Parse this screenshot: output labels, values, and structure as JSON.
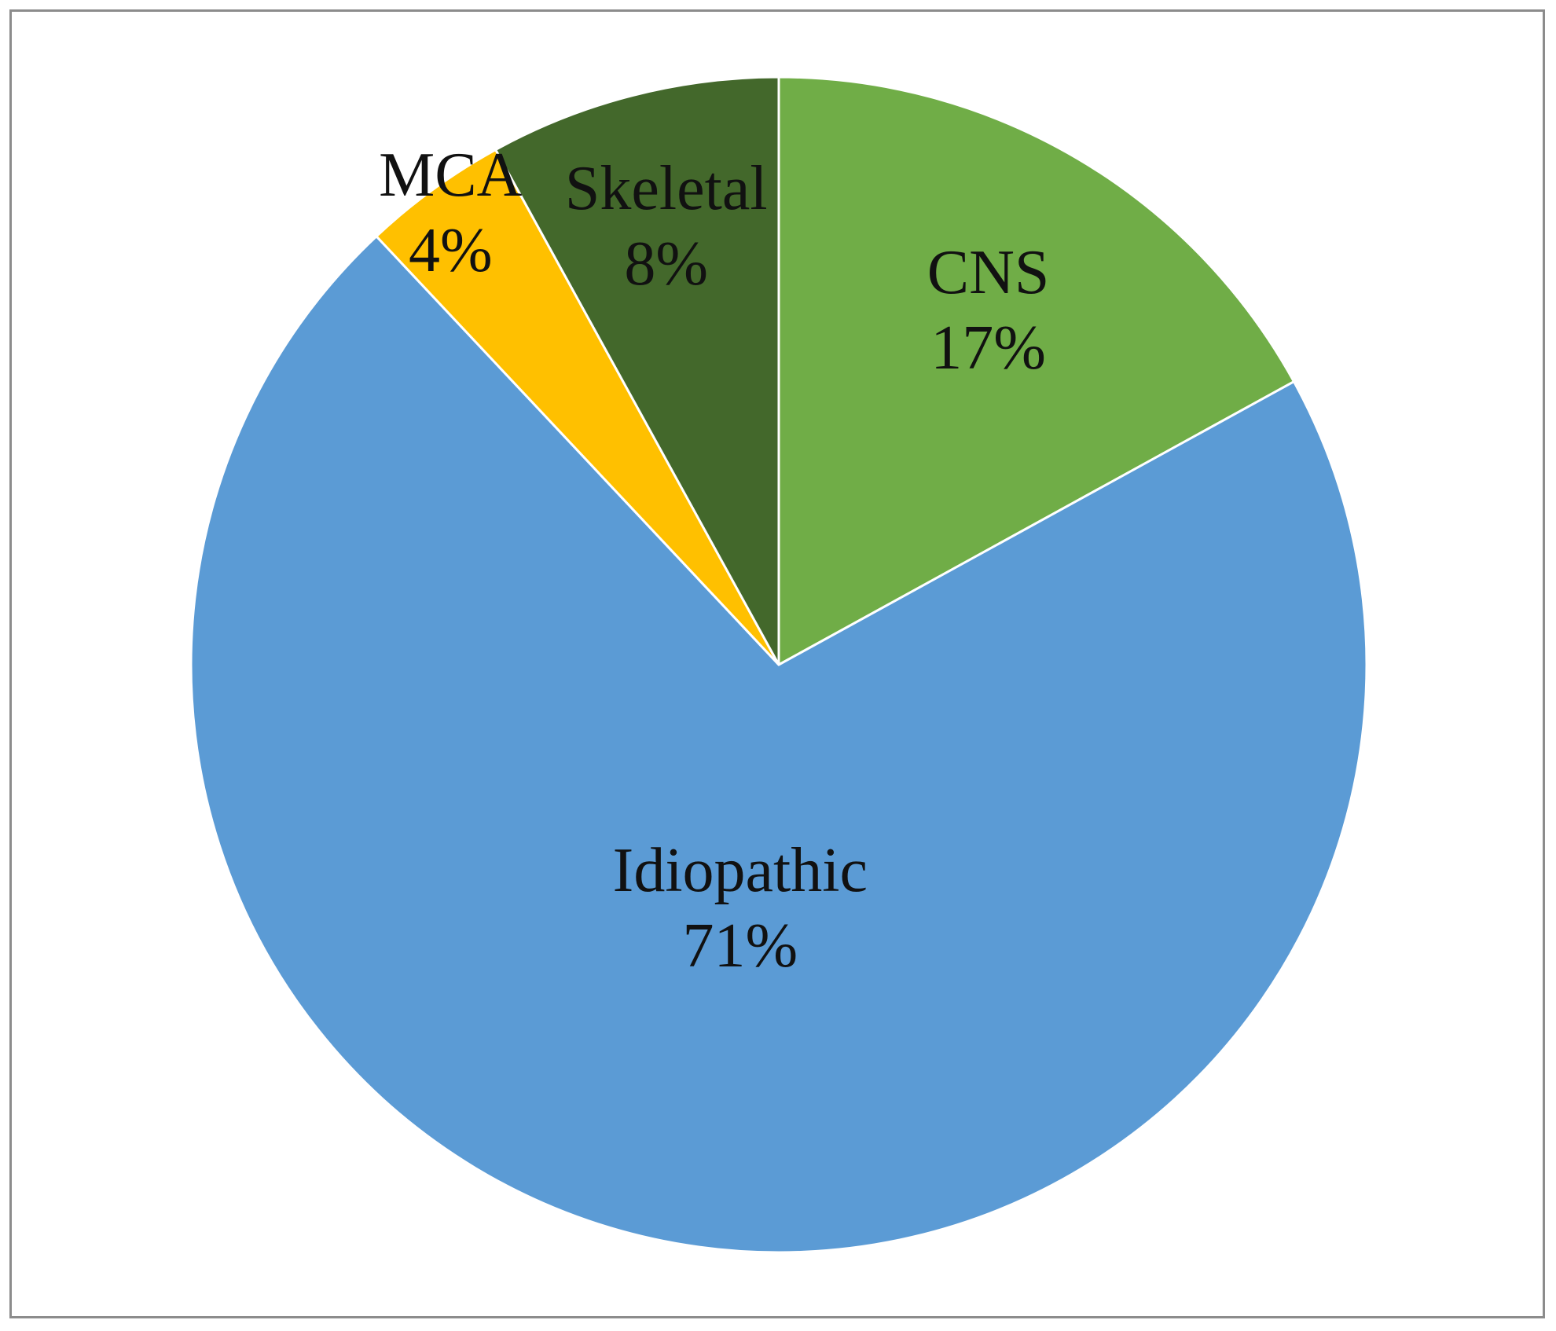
{
  "chart_data": {
    "type": "pie",
    "categories": [
      "CNS",
      "Idiopathic",
      "MCA",
      "Skeletal"
    ],
    "values": [
      17,
      71,
      4,
      8
    ],
    "value_labels": [
      "17%",
      "71%",
      "4%",
      "8%"
    ],
    "colors": [
      "#70ad47",
      "#5b9bd5",
      "#ffc000",
      "#43682b"
    ]
  }
}
